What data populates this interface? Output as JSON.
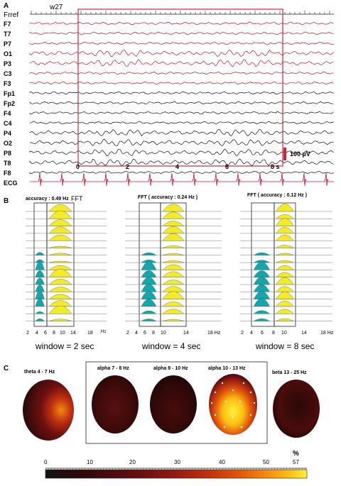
{
  "panelA": {
    "label": "A",
    "ref": "Frref",
    "trial": "w27",
    "red_channels": [
      "F7",
      "T7",
      "P7",
      "O1",
      "P3",
      "C3",
      "F3"
    ],
    "black_channels": [
      "Fp1",
      "Fp2",
      "F4",
      "C4",
      "P4",
      "O2",
      "P8",
      "T8",
      "F8"
    ],
    "ecg": "ECG",
    "time_ticks": [
      "0",
      "2",
      "4",
      "6",
      "8 s"
    ],
    "scale": "100 µV",
    "colors": {
      "red": "#c8102e",
      "black": "#111111",
      "box": "#d0243a"
    }
  },
  "panelB": {
    "label": "B",
    "fft": "FFT",
    "columns": [
      {
        "accuracy": "accuracy : 0.49 Hz",
        "ticks": [
          "2",
          "4",
          "6",
          "8",
          "10",
          "14",
          "18"
        ],
        "unit": "Hz",
        "window": "window = 2 sec"
      },
      {
        "accuracy": "FFT  ( accuracy : 0.24 Hz )",
        "ticks": [
          "2",
          "4",
          "6",
          "8",
          "10",
          "14",
          "18 Hz"
        ],
        "unit": "",
        "window": "window = 4 sec"
      },
      {
        "accuracy": "FFT  ( accuracy : 0.12 Hz )",
        "ticks": [
          "2",
          "4",
          "6",
          "8",
          "10",
          "14",
          "18 Hz"
        ],
        "unit": "",
        "window": "window = 8 sec"
      }
    ],
    "colors": {
      "theta": "#1aa3a8",
      "alpha": "#f2ea2a"
    }
  },
  "panelC": {
    "label": "C",
    "maps": [
      {
        "title": "theta  4 - 7 Hz"
      },
      {
        "title": "alpha  7 - 8 Hz"
      },
      {
        "title": "alpha  8 - 10 Hz"
      },
      {
        "title": "alpha  10 - 13 Hz"
      },
      {
        "title": "beta  13 - 25 Hz"
      }
    ],
    "unit": "%",
    "scale_ticks": [
      "0",
      "10",
      "20",
      "30",
      "40",
      "50",
      "57"
    ],
    "colormap": [
      "#141414",
      "#2a0a0a",
      "#4a0c0c",
      "#6e1010",
      "#961a12",
      "#c0300f",
      "#e2560c",
      "#f4880e",
      "#fbbd12",
      "#fff03a"
    ]
  }
}
